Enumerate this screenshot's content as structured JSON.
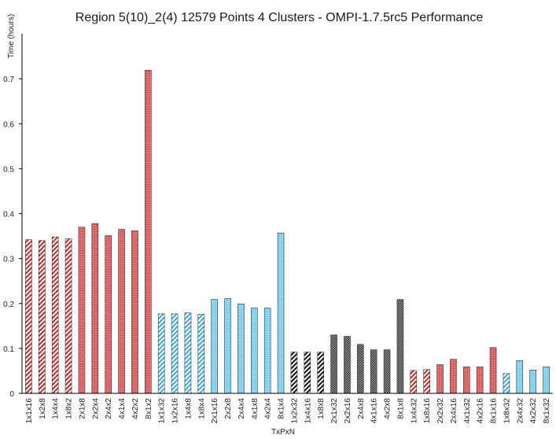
{
  "chart_data": {
    "type": "bar",
    "title": "Region 5(10)_2(4) 12579 Points 4 Clusters - OMPI-1.7.5rc5 Performance",
    "xlabel": "TxPxN",
    "ylabel": "Time (hours)",
    "ylim": [
      0,
      0.8
    ],
    "yticks": [
      0,
      0.1,
      0.2,
      0.3,
      0.4,
      0.5,
      0.6,
      0.7
    ],
    "grid": false,
    "legend": "none",
    "categories": [
      "1x1x16",
      "1x2x8",
      "1x4x4",
      "1x8x2",
      "2x1x8",
      "2x2x4",
      "2x4x2",
      "4x1x4",
      "4x2x2",
      "8x1x2",
      "1x1x32",
      "1x2x16",
      "1x4x8",
      "1x8x4",
      "2x1x16",
      "2x2x8",
      "2x4x4",
      "4x1x8",
      "4x2x4",
      "8x1x4",
      "1x2x32",
      "1x4x16",
      "1x8x8",
      "2x1x32",
      "2x2x16",
      "2x4x8",
      "4x1x16",
      "4x2x8",
      "8x1x8",
      "1x4x32",
      "1x8x16",
      "2x2x32",
      "2x4x16",
      "4x1x32",
      "4x2x16",
      "8x1x16",
      "1x8x32",
      "2x4x32",
      "4x2x32",
      "8x1x32"
    ],
    "values": [
      0.342,
      0.34,
      0.348,
      0.344,
      0.37,
      0.378,
      0.351,
      0.365,
      0.362,
      0.719,
      0.177,
      0.177,
      0.179,
      0.176,
      0.209,
      0.211,
      0.199,
      0.19,
      0.19,
      0.357,
      0.092,
      0.092,
      0.092,
      0.13,
      0.127,
      0.109,
      0.097,
      0.097,
      0.209,
      0.051,
      0.053,
      0.064,
      0.076,
      0.059,
      0.059,
      0.102,
      0.044,
      0.073,
      0.052,
      0.059
    ],
    "fills": [
      "red-hatch",
      "red-hatch",
      "red-hatch",
      "red-hatch",
      "red",
      "red",
      "red",
      "red",
      "red",
      "red",
      "blue-hatch",
      "blue-hatch",
      "blue-hatch",
      "blue-hatch",
      "blue",
      "blue",
      "blue",
      "blue",
      "blue",
      "blue",
      "black-hatch",
      "black-hatch",
      "black-hatch",
      "gray-dense",
      "gray-dense",
      "gray-dense",
      "gray-dense",
      "gray-dense",
      "gray-dense",
      "red-hatch",
      "red-hatch",
      "red",
      "red",
      "red",
      "red",
      "red",
      "blue-hatch",
      "blue",
      "blue",
      "blue"
    ],
    "colors": {
      "red": "#d9534f",
      "blue": "#6ec8e8",
      "black": "#111111",
      "gray": "#555555",
      "axis": "#000000"
    }
  }
}
